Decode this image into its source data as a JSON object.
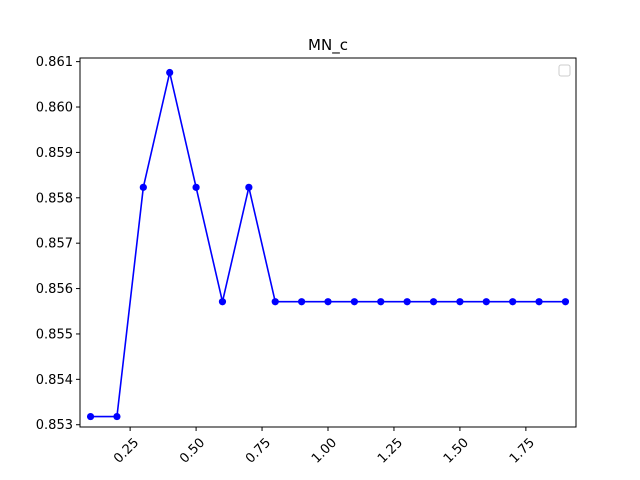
{
  "chart_data": {
    "type": "line",
    "title": "MN_c",
    "xlabel": "",
    "ylabel": "",
    "xlim": [
      0.06,
      1.94
    ],
    "ylim": [
      0.85295,
      0.86108
    ],
    "x_ticks": [
      0.25,
      0.5,
      0.75,
      1.0,
      1.25,
      1.5,
      1.75
    ],
    "x_tick_labels": [
      "0.25",
      "0.50",
      "0.75",
      "1.00",
      "1.25",
      "1.50",
      "1.75"
    ],
    "y_ticks": [
      0.853,
      0.854,
      0.855,
      0.856,
      0.857,
      0.858,
      0.859,
      0.86,
      0.861
    ],
    "y_tick_labels": [
      "0.853",
      "0.854",
      "0.855",
      "0.856",
      "0.857",
      "0.858",
      "0.859",
      "0.860",
      "0.861"
    ],
    "x_tick_rotation": 45,
    "grid": false,
    "legend": {
      "placement": "top-right",
      "entries": []
    },
    "series": [
      {
        "color": "#0000ff",
        "marker": "circle",
        "x": [
          0.1,
          0.2,
          0.3,
          0.4,
          0.5,
          0.6,
          0.7,
          0.8,
          0.9,
          1.0,
          1.1,
          1.2,
          1.3,
          1.4,
          1.5,
          1.6,
          1.7,
          1.8,
          1.9
        ],
        "y": [
          0.85318,
          0.85318,
          0.85823,
          0.86076,
          0.85823,
          0.85571,
          0.85823,
          0.85571,
          0.85571,
          0.85571,
          0.85571,
          0.85571,
          0.85571,
          0.85571,
          0.85571,
          0.85571,
          0.85571,
          0.85571,
          0.85571
        ]
      }
    ]
  }
}
